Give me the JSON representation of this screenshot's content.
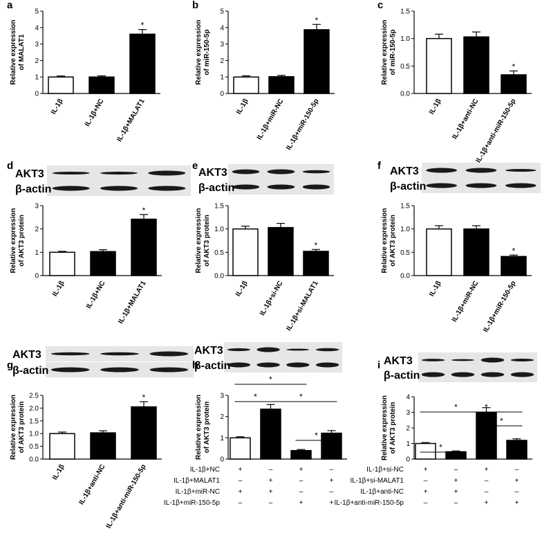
{
  "chart_data": [
    {
      "panel": "a",
      "type": "bar",
      "ylabel": "Relative expression of MALAT1",
      "ylim": [
        0,
        5
      ],
      "yticks": [
        "0",
        "1",
        "2",
        "3",
        "4",
        "5"
      ],
      "categories": [
        "IL-1β",
        "IL-1β+NC",
        "IL-1β+MALAT1"
      ],
      "values": [
        1.0,
        1.0,
        3.6
      ],
      "errors": [
        0.06,
        0.07,
        0.28
      ],
      "fills": [
        "white",
        "black",
        "black"
      ],
      "significance": [
        "",
        "",
        "*"
      ]
    },
    {
      "panel": "b",
      "type": "bar",
      "ylabel": "Relative expression of miR-150-5p",
      "ylim": [
        0,
        5
      ],
      "yticks": [
        "0",
        "1",
        "2",
        "3",
        "4",
        "5"
      ],
      "categories": [
        "IL-1β",
        "IL-1β+miR-NC",
        "IL-1β+miR-150-5p"
      ],
      "values": [
        1.0,
        1.02,
        3.87
      ],
      "errors": [
        0.07,
        0.08,
        0.32
      ],
      "fills": [
        "white",
        "black",
        "black"
      ],
      "significance": [
        "",
        "",
        "*"
      ]
    },
    {
      "panel": "c",
      "type": "bar",
      "ylabel": "Relative expression of miR-150-5p",
      "ylim": [
        0,
        1.5
      ],
      "yticks": [
        "0.0",
        "0.5",
        "1.0",
        "1.5"
      ],
      "categories": [
        "IL-1β",
        "IL-1β+anti-NC",
        "IL-1β+anti-miR-150-5p"
      ],
      "values": [
        1.0,
        1.03,
        0.34
      ],
      "errors": [
        0.08,
        0.09,
        0.07
      ],
      "fills": [
        "white",
        "black",
        "black"
      ],
      "significance": [
        "",
        "",
        "*"
      ]
    },
    {
      "panel": "d",
      "type": "bar",
      "blot_labels": [
        "AKT3",
        "β-actin"
      ],
      "ylabel": "Relative expression of AKT3 protein",
      "ylim": [
        0,
        3
      ],
      "yticks": [
        "0",
        "1",
        "2",
        "3"
      ],
      "categories": [
        "IL-1β",
        "IL-1β+NC",
        "IL-1β+MALAT1"
      ],
      "values": [
        1.0,
        1.03,
        2.42
      ],
      "errors": [
        0.04,
        0.08,
        0.2
      ],
      "fills": [
        "white",
        "black",
        "black"
      ],
      "significance": [
        "",
        "",
        "*"
      ]
    },
    {
      "panel": "e",
      "type": "bar",
      "blot_labels": [
        "AKT3",
        "β-actin"
      ],
      "ylabel": "Relative expression of AKT3 protein",
      "ylim": [
        0,
        1.5
      ],
      "yticks": [
        "0.0",
        "0.5",
        "1.0",
        "1.5"
      ],
      "categories": [
        "IL-1β",
        "IL-1β+si-NC",
        "IL-1β+si-MALAT1"
      ],
      "values": [
        1.0,
        1.03,
        0.52
      ],
      "errors": [
        0.06,
        0.09,
        0.04
      ],
      "fills": [
        "white",
        "black",
        "black"
      ],
      "significance": [
        "",
        "",
        "*"
      ]
    },
    {
      "panel": "f",
      "type": "bar",
      "blot_labels": [
        "AKT3",
        "β-actin"
      ],
      "ylabel": "Relative expression of AKT3 protein",
      "ylim": [
        0,
        1.5
      ],
      "yticks": [
        "0.0",
        "0.5",
        "1.0",
        "1.5"
      ],
      "categories": [
        "IL-1β",
        "IL-1β+miR-NC",
        "IL-1β+miR-150-5p"
      ],
      "values": [
        1.0,
        1.0,
        0.41
      ],
      "errors": [
        0.07,
        0.07,
        0.03
      ],
      "fills": [
        "white",
        "black",
        "black"
      ],
      "significance": [
        "",
        "",
        "*"
      ]
    },
    {
      "panel": "g",
      "type": "bar",
      "blot_labels": [
        "AKT3",
        "β-actin"
      ],
      "ylabel": "Relative expression of AKT3 protein",
      "ylim": [
        0,
        2.5
      ],
      "yticks": [
        "0.0",
        "0.5",
        "1.0",
        "1.5",
        "2.0",
        "2.5"
      ],
      "categories": [
        "IL-1β",
        "IL-1β+anti-NC",
        "IL-1β+anti-miR-150-5p"
      ],
      "values": [
        1.0,
        1.03,
        2.05
      ],
      "errors": [
        0.06,
        0.08,
        0.2
      ],
      "fills": [
        "white",
        "black",
        "black"
      ],
      "significance": [
        "",
        "",
        "*"
      ]
    },
    {
      "panel": "h",
      "type": "bar",
      "blot_labels": [
        "AKT3",
        "β-actin"
      ],
      "ylabel": "Relative expression of AKT3 protein",
      "ylim": [
        0,
        3
      ],
      "yticks": [
        "0",
        "1",
        "2",
        "3"
      ],
      "values": [
        1.0,
        2.35,
        0.4,
        1.22
      ],
      "errors": [
        0.05,
        0.22,
        0.05,
        0.12
      ],
      "fills": [
        "white",
        "black",
        "black",
        "black"
      ],
      "comparisons": [
        {
          "a": 0,
          "b": 1,
          "label": "*"
        },
        {
          "a": 0,
          "b": 2,
          "label": "*"
        },
        {
          "a": 1,
          "b": 3,
          "label": "*"
        },
        {
          "a": 2,
          "b": 3,
          "label": "*"
        }
      ],
      "conditions": [
        {
          "label": "IL-1β+NC",
          "marks": [
            "+",
            "–",
            "+",
            "–"
          ]
        },
        {
          "label": "IL-1β+MALAT1",
          "marks": [
            "–",
            "+",
            "–",
            "+"
          ]
        },
        {
          "label": "IL-1β+miR-NC",
          "marks": [
            "+",
            "+",
            "–",
            "–"
          ]
        },
        {
          "label": "IL-1β+miR-150-5p",
          "marks": [
            "–",
            "–",
            "+",
            "+"
          ]
        }
      ]
    },
    {
      "panel": "i",
      "type": "bar",
      "blot_labels": [
        "AKT3",
        "β-actin"
      ],
      "ylabel": "Relative expression of AKT3 protein",
      "ylim": [
        0,
        4
      ],
      "yticks": [
        "0",
        "1",
        "2",
        "3",
        "4"
      ],
      "values": [
        1.0,
        0.47,
        3.0,
        1.2
      ],
      "errors": [
        0.06,
        0.05,
        0.3,
        0.1
      ],
      "fills": [
        "white",
        "black",
        "black",
        "black"
      ],
      "comparisons": [
        {
          "a": 0,
          "b": 1,
          "label": "*"
        },
        {
          "a": 0,
          "b": 2,
          "label": "*"
        },
        {
          "a": 1,
          "b": 3,
          "label": "*"
        },
        {
          "a": 2,
          "b": 3,
          "label": "*"
        }
      ],
      "conditions": [
        {
          "label": "IL-1β+si-NC",
          "marks": [
            "+",
            "–",
            "+",
            "–"
          ]
        },
        {
          "label": "IL-1β+si-MALAT1",
          "marks": [
            "–",
            "+",
            "–",
            "+"
          ]
        },
        {
          "label": "IL-1β+anti-NC",
          "marks": [
            "+",
            "+",
            "–",
            "–"
          ]
        },
        {
          "label": "IL-1β+anti-miR-150-5p",
          "marks": [
            "–",
            "–",
            "+",
            "+"
          ]
        }
      ]
    }
  ]
}
